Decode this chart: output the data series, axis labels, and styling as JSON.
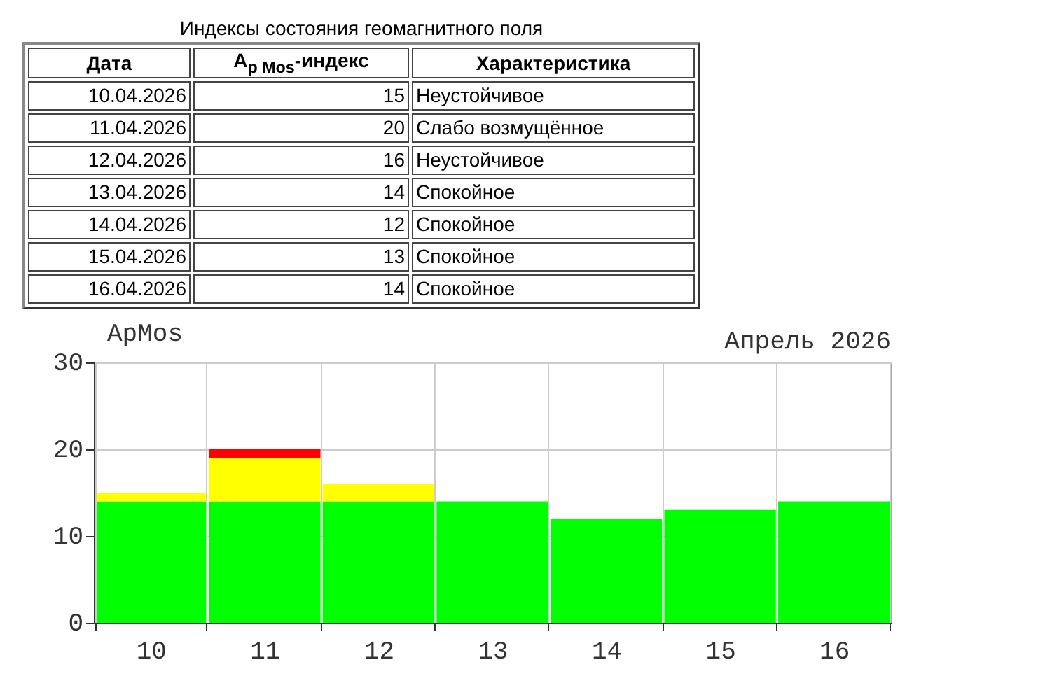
{
  "chart_data": [
    {
      "type": "other",
      "title": "Индексы состояния геомагнитного поля",
      "categories": [
        "10.04.2026",
        "11.04.2026",
        "12.04.2026",
        "13.04.2026",
        "14.04.2026",
        "15.04.2026",
        "16.04.2026"
      ],
      "values": [
        15,
        20,
        16,
        14,
        12,
        13,
        14
      ],
      "data_labels": true,
      "annotations": [
        "Дата",
        "A$_{p Mos}$-индекс",
        "Характеристика",
        "Неустойчивое",
        "Слабо возмущённое",
        "Неустойчивое",
        "Спокойное",
        "Спокойное",
        "Спокойное",
        "Спокойное"
      ]
    },
    {
      "type": "bar",
      "title": "Апрель 2026",
      "ylabel": "ApMos",
      "categories": [
        "10",
        "11",
        "12",
        "13",
        "14",
        "15",
        "16"
      ],
      "stacked": true,
      "ylim": [
        0,
        30
      ],
      "yticks": [
        0,
        10,
        20,
        30
      ],
      "grid": true,
      "legend": false,
      "series": [
        {
          "color": "#00ff00",
          "values": [
            14,
            14,
            14,
            14,
            12,
            13,
            14
          ]
        },
        {
          "color": "#ffff00",
          "values": [
            1,
            5,
            2,
            0,
            0,
            0,
            0
          ]
        },
        {
          "color": "#ff0000",
          "values": [
            0,
            1,
            0,
            0,
            0,
            0,
            0
          ]
        }
      ]
    }
  ]
}
